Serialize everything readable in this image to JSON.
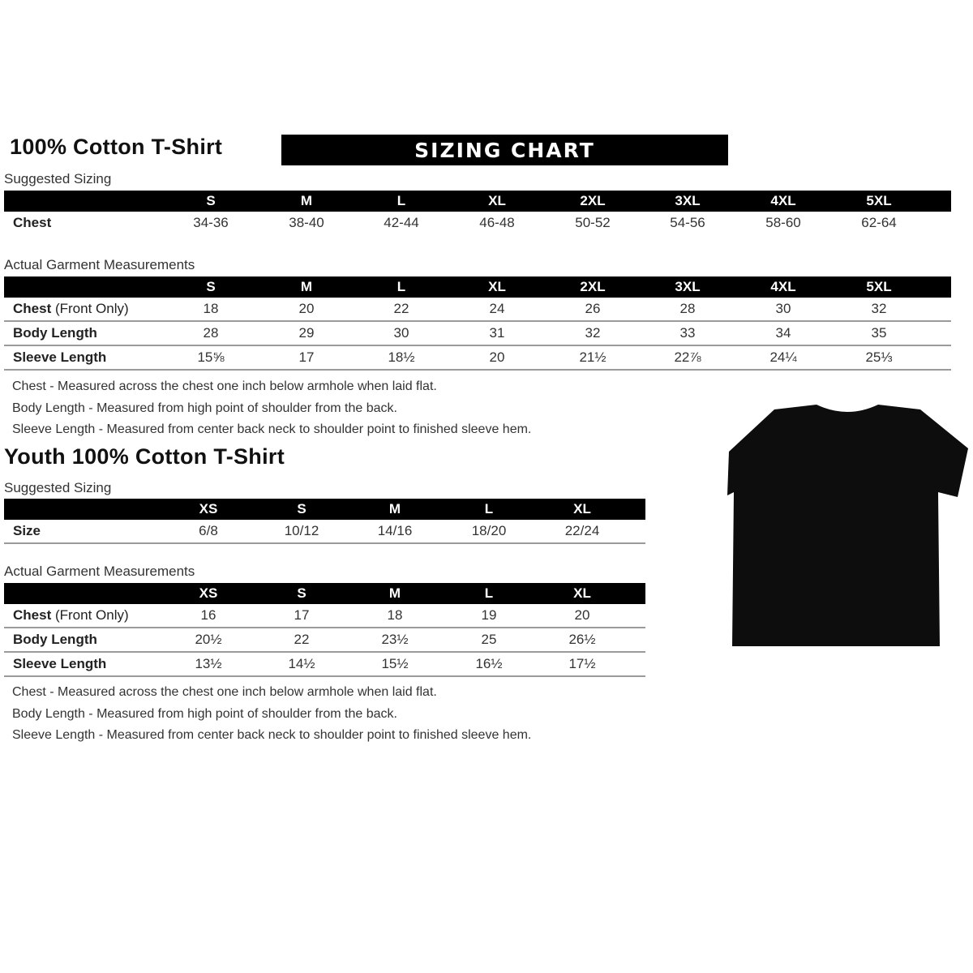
{
  "adult": {
    "title": "100% Cotton T-Shirt",
    "banner": "SIZING CHART",
    "suggested_label": "Suggested Sizing",
    "sizes": [
      "S",
      "M",
      "L",
      "XL",
      "2XL",
      "3XL",
      "4XL",
      "5XL"
    ],
    "suggested_rows": [
      {
        "label": "Chest",
        "values": [
          "34-36",
          "38-40",
          "42-44",
          "46-48",
          "50-52",
          "54-56",
          "58-60",
          "62-64"
        ]
      }
    ],
    "actual_label": "Actual Garment Measurements",
    "actual_rows": [
      {
        "label": "Chest",
        "label_note": "(Front Only)",
        "values": [
          "18",
          "20",
          "22",
          "24",
          "26",
          "28",
          "30",
          "32"
        ]
      },
      {
        "label": "Body Length",
        "values": [
          "28",
          "29",
          "30",
          "31",
          "32",
          "33",
          "34",
          "35"
        ]
      },
      {
        "label": "Sleeve Length",
        "values": [
          "15⅝",
          "17",
          "18½",
          "20",
          "21½",
          "22⅞",
          "24¼",
          "25⅓"
        ]
      }
    ],
    "notes": [
      "Chest - Measured across the chest one inch below armhole when laid flat.",
      "Body Length - Measured from high point of shoulder from the back.",
      "Sleeve Length - Measured from center back neck to shoulder point to finished sleeve hem."
    ]
  },
  "youth": {
    "title": "Youth 100% Cotton T-Shirt",
    "suggested_label": "Suggested Sizing",
    "sizes": [
      "XS",
      "S",
      "M",
      "L",
      "XL"
    ],
    "suggested_rows": [
      {
        "label": "Size",
        "values": [
          "6/8",
          "10/12",
          "14/16",
          "18/20",
          "22/24"
        ]
      }
    ],
    "actual_label": "Actual Garment Measurements",
    "actual_rows": [
      {
        "label": "Chest",
        "label_note": "(Front Only)",
        "values": [
          "16",
          "17",
          "18",
          "19",
          "20"
        ]
      },
      {
        "label": "Body Length",
        "values": [
          "20½",
          "22",
          "23½",
          "25",
          "26½"
        ]
      },
      {
        "label": "Sleeve Length",
        "values": [
          "13½",
          "14½",
          "15½",
          "16½",
          "17½"
        ]
      }
    ],
    "notes": [
      "Chest - Measured across the chest one inch below armhole when laid flat.",
      "Body Length - Measured from high point of shoulder from the back.",
      "Sleeve Length - Measured from center back neck to shoulder point to finished sleeve hem."
    ]
  },
  "image": {
    "tshirt_color": "#0d0d0d"
  }
}
